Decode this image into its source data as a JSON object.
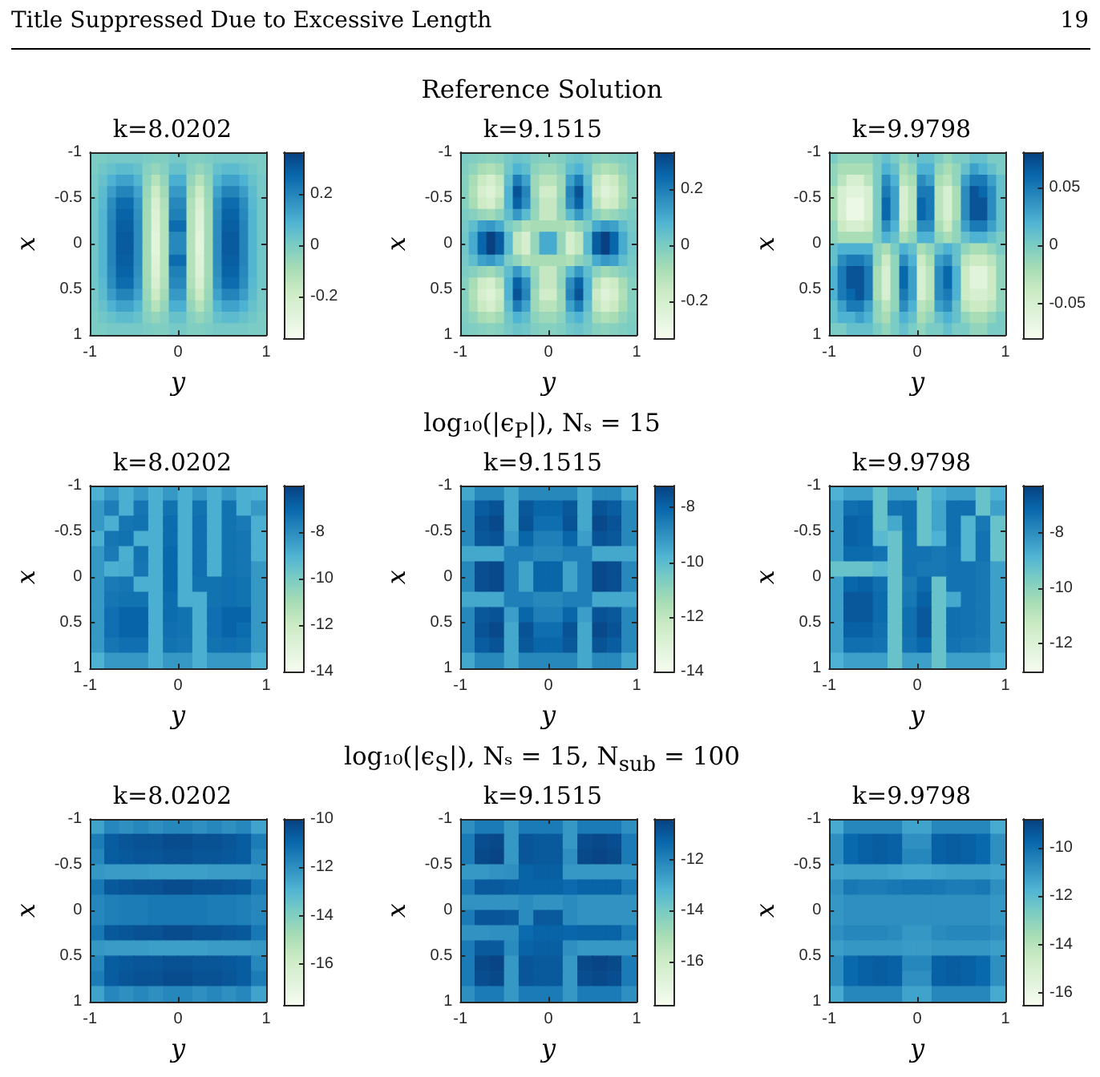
{
  "chart_data": [
    {
      "type": "heatmap",
      "title": "k=8.0202",
      "annotations": [
        "Title Suppressed Due to Excessive Length",
        "19"
      ],
      "xlabel": "y",
      "ylabel": "x",
      "xlim": [
        -1,
        1
      ],
      "ylim": [
        1,
        -1
      ],
      "xticks": [
        -1,
        0,
        1
      ],
      "yticks": [
        -1,
        -0.5,
        0,
        0.5,
        1
      ],
      "clim": [
        -0.36,
        0.36
      ],
      "cticks": [
        -0.2,
        0,
        0.2
      ],
      "cells": [
        [
          0,
          0,
          0.01,
          0.01,
          0.01,
          0.01,
          0,
          -0.01,
          -0.01,
          0.01,
          0.01,
          -0.01,
          -0.01,
          0,
          0.01,
          0.01,
          0.01,
          0.01,
          0,
          0
        ],
        [
          0,
          0.02,
          0.04,
          0.06,
          0.06,
          0.04,
          -0.02,
          -0.05,
          -0.02,
          0.04,
          0.04,
          -0.02,
          -0.05,
          -0.02,
          0.04,
          0.06,
          0.06,
          0.04,
          0.02,
          0
        ],
        [
          0.01,
          0.04,
          0.09,
          0.13,
          0.13,
          0.08,
          -0.04,
          -0.12,
          -0.05,
          0.1,
          0.1,
          -0.05,
          -0.12,
          -0.04,
          0.08,
          0.13,
          0.13,
          0.09,
          0.04,
          0.01
        ],
        [
          0.01,
          0.06,
          0.14,
          0.2,
          0.2,
          0.13,
          -0.06,
          -0.18,
          -0.08,
          0.15,
          0.15,
          -0.08,
          -0.18,
          -0.06,
          0.13,
          0.2,
          0.2,
          0.14,
          0.06,
          0.01
        ],
        [
          0.02,
          0.07,
          0.18,
          0.26,
          0.26,
          0.16,
          -0.07,
          -0.23,
          -0.11,
          0.19,
          0.19,
          -0.11,
          -0.23,
          -0.07,
          0.16,
          0.26,
          0.26,
          0.18,
          0.07,
          0.02
        ],
        [
          0.02,
          0.08,
          0.19,
          0.28,
          0.28,
          0.17,
          -0.08,
          -0.25,
          -0.12,
          0.21,
          0.21,
          -0.12,
          -0.25,
          -0.08,
          0.17,
          0.28,
          0.28,
          0.19,
          0.08,
          0.02
        ],
        [
          0.02,
          0.08,
          0.2,
          0.29,
          0.29,
          0.18,
          -0.08,
          -0.26,
          -0.12,
          0.26,
          0.26,
          -0.12,
          -0.26,
          -0.08,
          0.18,
          0.29,
          0.29,
          0.2,
          0.08,
          0.02
        ],
        [
          0.02,
          0.08,
          0.2,
          0.3,
          0.3,
          0.18,
          -0.08,
          -0.28,
          -0.12,
          0.19,
          0.19,
          -0.12,
          -0.28,
          -0.08,
          0.18,
          0.3,
          0.3,
          0.2,
          0.08,
          0.02
        ],
        [
          0.02,
          0.08,
          0.2,
          0.3,
          0.3,
          0.18,
          -0.08,
          -0.28,
          -0.12,
          0.19,
          0.19,
          -0.12,
          -0.28,
          -0.08,
          0.18,
          0.3,
          0.3,
          0.2,
          0.08,
          0.02
        ],
        [
          0.02,
          0.08,
          0.2,
          0.29,
          0.29,
          0.18,
          -0.08,
          -0.26,
          -0.12,
          0.26,
          0.26,
          -0.12,
          -0.26,
          -0.08,
          0.18,
          0.29,
          0.29,
          0.2,
          0.08,
          0.02
        ],
        [
          0.02,
          0.08,
          0.19,
          0.28,
          0.28,
          0.17,
          -0.08,
          -0.25,
          -0.12,
          0.21,
          0.21,
          -0.12,
          -0.25,
          -0.08,
          0.17,
          0.28,
          0.28,
          0.19,
          0.08,
          0.02
        ],
        [
          0.02,
          0.07,
          0.18,
          0.26,
          0.26,
          0.16,
          -0.07,
          -0.23,
          -0.11,
          0.19,
          0.19,
          -0.11,
          -0.23,
          -0.07,
          0.16,
          0.26,
          0.26,
          0.18,
          0.07,
          0.02
        ],
        [
          0.01,
          0.06,
          0.14,
          0.2,
          0.2,
          0.13,
          -0.06,
          -0.18,
          -0.08,
          0.15,
          0.15,
          -0.08,
          -0.18,
          -0.06,
          0.13,
          0.2,
          0.2,
          0.14,
          0.06,
          0.01
        ],
        [
          0.01,
          0.04,
          0.09,
          0.13,
          0.13,
          0.08,
          -0.04,
          -0.12,
          -0.05,
          0.1,
          0.1,
          -0.05,
          -0.12,
          -0.04,
          0.08,
          0.13,
          0.13,
          0.09,
          0.04,
          0.01
        ],
        [
          0,
          0.02,
          0.04,
          0.06,
          0.06,
          0.04,
          -0.02,
          -0.05,
          -0.02,
          0.04,
          0.04,
          -0.02,
          -0.05,
          -0.02,
          0.04,
          0.06,
          0.06,
          0.04,
          0.02,
          0
        ],
        [
          0,
          0,
          0.01,
          0.01,
          0.01,
          0.01,
          0,
          -0.01,
          -0.01,
          0.01,
          0.01,
          -0.01,
          -0.01,
          0,
          0.01,
          0.01,
          0.01,
          0.01,
          0,
          0
        ]
      ]
    },
    {
      "type": "heatmap",
      "title": "k=9.1515",
      "subtitle": "Reference Solution",
      "xlabel": "y",
      "ylabel": "x",
      "xlim": [
        -1,
        1
      ],
      "ylim": [
        1,
        -1
      ],
      "xticks": [
        -1,
        0,
        1
      ],
      "yticks": [
        -1,
        -0.5,
        0,
        0.5,
        1
      ],
      "clim": [
        -0.33,
        0.33
      ],
      "cticks": [
        -0.2,
        0,
        0.2
      ],
      "cells": [
        [
          0,
          -0.01,
          -0.02,
          -0.03,
          -0.02,
          0.01,
          0.03,
          0.02,
          -0.01,
          -0.02,
          -0.02,
          -0.01,
          0.02,
          0.03,
          0.01,
          -0.02,
          -0.03,
          -0.02,
          -0.01,
          0
        ],
        [
          -0.01,
          -0.04,
          -0.08,
          -0.1,
          -0.07,
          0.02,
          0.08,
          0.05,
          -0.03,
          -0.06,
          -0.06,
          -0.03,
          0.05,
          0.08,
          0.02,
          -0.07,
          -0.1,
          -0.08,
          -0.04,
          -0.01
        ],
        [
          -0.02,
          -0.08,
          -0.16,
          -0.2,
          -0.14,
          0.05,
          0.2,
          0.12,
          -0.06,
          -0.12,
          -0.12,
          -0.06,
          0.12,
          0.2,
          0.05,
          -0.14,
          -0.2,
          -0.16,
          -0.08,
          -0.02
        ],
        [
          -0.02,
          -0.1,
          -0.2,
          -0.24,
          -0.17,
          0.08,
          0.29,
          0.18,
          -0.06,
          -0.18,
          -0.18,
          -0.06,
          0.18,
          0.29,
          0.08,
          -0.17,
          -0.24,
          -0.2,
          -0.1,
          -0.02
        ],
        [
          -0.02,
          -0.08,
          -0.17,
          -0.2,
          -0.12,
          0.08,
          0.26,
          0.16,
          -0.04,
          -0.15,
          -0.15,
          -0.04,
          0.16,
          0.26,
          0.08,
          -0.12,
          -0.2,
          -0.17,
          -0.08,
          -0.02
        ],
        [
          0,
          -0.02,
          -0.05,
          -0.07,
          -0.03,
          0.05,
          0.14,
          0.06,
          -0.05,
          -0.15,
          -0.15,
          -0.05,
          0.06,
          0.14,
          0.05,
          -0.03,
          -0.07,
          -0.05,
          -0.02,
          0
        ],
        [
          0.01,
          0.05,
          0.12,
          0.14,
          0.1,
          0,
          -0.04,
          -0.1,
          -0.08,
          -0.08,
          -0.08,
          -0.08,
          -0.1,
          -0.04,
          0,
          0.1,
          0.14,
          0.12,
          0.05,
          0.01
        ],
        [
          0.02,
          0.1,
          0.25,
          0.33,
          0.27,
          0.06,
          -0.14,
          -0.2,
          -0.05,
          0.1,
          0.1,
          -0.05,
          -0.2,
          -0.14,
          0.06,
          0.27,
          0.33,
          0.25,
          0.1,
          0.02
        ],
        [
          0.02,
          0.1,
          0.25,
          0.33,
          0.27,
          0.06,
          -0.14,
          -0.2,
          -0.05,
          0.1,
          0.1,
          -0.05,
          -0.2,
          -0.14,
          0.06,
          0.27,
          0.33,
          0.25,
          0.1,
          0.02
        ],
        [
          0.01,
          0.05,
          0.12,
          0.14,
          0.1,
          0,
          -0.04,
          -0.1,
          -0.08,
          -0.08,
          -0.08,
          -0.08,
          -0.1,
          -0.04,
          0,
          0.1,
          0.14,
          0.12,
          0.05,
          0.01
        ],
        [
          0,
          -0.02,
          -0.05,
          -0.07,
          -0.03,
          0.05,
          0.14,
          0.06,
          -0.05,
          -0.15,
          -0.15,
          -0.05,
          0.06,
          0.14,
          0.05,
          -0.03,
          -0.07,
          -0.05,
          -0.02,
          0
        ],
        [
          -0.02,
          -0.08,
          -0.17,
          -0.2,
          -0.12,
          0.08,
          0.26,
          0.16,
          -0.04,
          -0.15,
          -0.15,
          -0.04,
          0.16,
          0.26,
          0.08,
          -0.12,
          -0.2,
          -0.17,
          -0.08,
          -0.02
        ],
        [
          -0.02,
          -0.1,
          -0.2,
          -0.24,
          -0.17,
          0.08,
          0.29,
          0.18,
          -0.06,
          -0.18,
          -0.18,
          -0.06,
          0.18,
          0.29,
          0.08,
          -0.17,
          -0.24,
          -0.2,
          -0.1,
          -0.02
        ],
        [
          -0.02,
          -0.08,
          -0.16,
          -0.2,
          -0.14,
          0.05,
          0.2,
          0.12,
          -0.06,
          -0.12,
          -0.12,
          -0.06,
          0.12,
          0.2,
          0.05,
          -0.14,
          -0.2,
          -0.16,
          -0.08,
          -0.02
        ],
        [
          -0.01,
          -0.04,
          -0.08,
          -0.1,
          -0.07,
          0.02,
          0.08,
          0.05,
          -0.03,
          -0.06,
          -0.06,
          -0.03,
          0.05,
          0.08,
          0.02,
          -0.07,
          -0.1,
          -0.08,
          -0.04,
          -0.01
        ],
        [
          0,
          -0.01,
          -0.02,
          -0.03,
          -0.02,
          0.01,
          0.03,
          0.02,
          -0.01,
          -0.02,
          -0.02,
          -0.01,
          0.02,
          0.03,
          0.01,
          -0.02,
          -0.03,
          -0.02,
          -0.01,
          0
        ]
      ]
    },
    {
      "type": "heatmap",
      "title": "k=9.9798",
      "xlabel": "y",
      "ylabel": "x",
      "xlim": [
        -1,
        1
      ],
      "ylim": [
        1,
        -1
      ],
      "xticks": [
        -1,
        0,
        1
      ],
      "yticks": [
        -1,
        -0.5,
        0,
        0.5,
        1
      ],
      "clim": [
        -0.08,
        0.08
      ],
      "cticks": [
        -0.05,
        0,
        0.05
      ],
      "cells": [
        [
          0,
          -0.01,
          -0.01,
          -0.01,
          -0.01,
          0,
          0.01,
          0,
          -0.01,
          0,
          0.01,
          0.01,
          0,
          -0.01,
          0,
          0,
          0.01,
          0.01,
          0,
          0
        ],
        [
          -0.01,
          -0.02,
          -0.02,
          -0.02,
          -0.02,
          0,
          0.02,
          0.01,
          -0.02,
          -0.01,
          0.02,
          0.02,
          -0.01,
          -0.02,
          -0.01,
          0.01,
          0.03,
          0.02,
          0.01,
          0
        ],
        [
          -0.01,
          -0.03,
          -0.05,
          -0.05,
          -0.03,
          0,
          0.04,
          0.02,
          -0.03,
          -0.02,
          0.04,
          0.03,
          -0.02,
          -0.03,
          -0.01,
          0.03,
          0.05,
          0.05,
          0.03,
          0.01
        ],
        [
          -0.02,
          -0.05,
          -0.06,
          -0.06,
          -0.05,
          0,
          0.05,
          0.03,
          -0.05,
          -0.03,
          0.05,
          0.05,
          -0.03,
          -0.05,
          -0.02,
          0.04,
          0.07,
          0.06,
          0.04,
          0.01
        ],
        [
          -0.02,
          -0.05,
          -0.07,
          -0.07,
          -0.05,
          0,
          0.06,
          0.03,
          -0.05,
          -0.03,
          0.06,
          0.05,
          -0.03,
          -0.05,
          -0.02,
          0.04,
          0.07,
          0.07,
          0.04,
          0.01
        ],
        [
          -0.02,
          -0.05,
          -0.07,
          -0.07,
          -0.05,
          0,
          0.06,
          0.03,
          -0.05,
          -0.03,
          0.06,
          0.05,
          -0.03,
          -0.05,
          -0.02,
          0.04,
          0.07,
          0.07,
          0.04,
          0.01
        ],
        [
          -0.01,
          -0.04,
          -0.05,
          -0.05,
          -0.04,
          0,
          0.04,
          0.02,
          -0.04,
          -0.02,
          0.04,
          0.04,
          -0.02,
          -0.04,
          -0.01,
          0.03,
          0.05,
          0.05,
          0.03,
          0.01
        ],
        [
          -0.01,
          -0.02,
          -0.02,
          -0.02,
          -0.02,
          0,
          0.02,
          0.01,
          -0.02,
          -0.01,
          0.02,
          0.02,
          -0.01,
          -0.02,
          -0.01,
          0.01,
          0.02,
          0.02,
          0.01,
          0
        ],
        [
          0.01,
          0.02,
          0.02,
          0.02,
          0.02,
          -0.01,
          -0.02,
          0,
          0.02,
          0.01,
          -0.02,
          -0.01,
          0.01,
          0.02,
          0.01,
          -0.01,
          -0.02,
          -0.02,
          -0.01,
          0
        ],
        [
          0.01,
          0.04,
          0.05,
          0.05,
          0.04,
          -0.01,
          -0.04,
          -0.01,
          0.04,
          0.02,
          -0.04,
          -0.02,
          0.03,
          0.04,
          0.01,
          -0.03,
          -0.04,
          -0.04,
          -0.03,
          -0.01
        ],
        [
          0.02,
          0.05,
          0.07,
          0.07,
          0.05,
          -0.02,
          -0.05,
          -0.01,
          0.06,
          0.03,
          -0.05,
          -0.03,
          0.04,
          0.06,
          0.02,
          -0.04,
          -0.06,
          -0.06,
          -0.04,
          -0.01
        ],
        [
          0.02,
          0.05,
          0.07,
          0.07,
          0.05,
          -0.02,
          -0.05,
          -0.01,
          0.06,
          0.03,
          -0.05,
          -0.03,
          0.04,
          0.06,
          0.02,
          -0.04,
          -0.06,
          -0.06,
          -0.04,
          -0.01
        ],
        [
          0.02,
          0.05,
          0.06,
          0.07,
          0.05,
          -0.02,
          -0.05,
          -0.01,
          0.05,
          0.03,
          -0.05,
          -0.03,
          0.04,
          0.05,
          0.02,
          -0.04,
          -0.05,
          -0.05,
          -0.04,
          -0.01
        ],
        [
          0.01,
          0.03,
          0.05,
          0.05,
          0.03,
          -0.01,
          -0.03,
          -0.01,
          0.04,
          0.02,
          -0.03,
          -0.02,
          0.03,
          0.04,
          0.01,
          -0.03,
          -0.04,
          -0.04,
          -0.03,
          -0.01
        ],
        [
          0.01,
          0.02,
          0.02,
          0.03,
          0.02,
          -0.01,
          -0.02,
          0,
          0.02,
          0.01,
          -0.02,
          -0.01,
          0.01,
          0.02,
          0.01,
          -0.01,
          -0.02,
          -0.02,
          -0.01,
          0
        ],
        [
          0,
          0,
          0.01,
          0.01,
          0.01,
          0,
          -0.01,
          0,
          0.01,
          0,
          -0.01,
          0,
          0,
          0.01,
          0,
          0,
          -0.01,
          -0.01,
          0,
          0
        ]
      ]
    },
    {
      "type": "heatmap",
      "title": "k=8.0202",
      "xlabel": "y",
      "ylabel": "x",
      "xlim": [
        -1,
        1
      ],
      "ylim": [
        1,
        -1
      ],
      "xticks": [
        -1,
        0,
        1
      ],
      "yticks": [
        -1,
        -0.5,
        0,
        0.5,
        1
      ],
      "clim": [
        -14,
        -6
      ],
      "cticks": [
        -14,
        -12,
        -10,
        -8
      ],
      "cells": [
        [
          -9,
          -8.3,
          -8.9,
          -8.3,
          -8.9,
          -8.3,
          -8.9,
          -8.3,
          -8.9,
          -8.3,
          -8.9,
          -9
        ],
        [
          -8.3,
          -7.6,
          -8.9,
          -7.4,
          -8.9,
          -7.3,
          -8.9,
          -7.3,
          -8.9,
          -7.3,
          -8.9,
          -8.3
        ],
        [
          -8.3,
          -8.9,
          -7.4,
          -7.3,
          -8.9,
          -7.1,
          -8.9,
          -7.2,
          -8.9,
          -7.3,
          -7.5,
          -8.9
        ],
        [
          -8.9,
          -7.4,
          -7.3,
          -8.9,
          -8.9,
          -7.1,
          -8.9,
          -7.2,
          -8.9,
          -7.3,
          -7.4,
          -8.9
        ],
        [
          -8.3,
          -7.5,
          -8.9,
          -7.3,
          -8.9,
          -7,
          -8.9,
          -7.2,
          -8.9,
          -7.3,
          -7.4,
          -8.9
        ],
        [
          -8.3,
          -8.9,
          -8.8,
          -7.4,
          -8.9,
          -7,
          -8.9,
          -7.2,
          -8.9,
          -7.3,
          -7.4,
          -8.3
        ],
        [
          -8.3,
          -7.5,
          -7.4,
          -8.9,
          -8.9,
          -7,
          -8.9,
          -7.3,
          -7.3,
          -7.2,
          -7.3,
          -8.3
        ],
        [
          -8.3,
          -7.4,
          -7.3,
          -7.3,
          -8.9,
          -7.1,
          -8.9,
          -8.9,
          -7.3,
          -7.2,
          -7.3,
          -8.3
        ],
        [
          -8.3,
          -7.2,
          -6.9,
          -6.9,
          -8.9,
          -7.1,
          -7.3,
          -8.9,
          -7.2,
          -6.9,
          -6.9,
          -8.3
        ],
        [
          -8.3,
          -7.2,
          -6.9,
          -6.9,
          -8.9,
          -7.2,
          -7.3,
          -8.9,
          -7.2,
          -6.9,
          -7.1,
          -8.3
        ],
        [
          -8.3,
          -7.4,
          -7.2,
          -7.2,
          -8.9,
          -7.3,
          -7.4,
          -8.9,
          -7.3,
          -7.2,
          -7.3,
          -8.3
        ],
        [
          -9,
          -8.3,
          -8.3,
          -8.3,
          -8.9,
          -8.3,
          -8.3,
          -8.9,
          -8.3,
          -8.3,
          -8.3,
          -9
        ]
      ]
    },
    {
      "type": "heatmap",
      "title": "k=9.1515",
      "subtitle": "log₁₀(|ϵ$_{P}$|), Nₛ = 15",
      "xlabel": "y",
      "ylabel": "x",
      "xlim": [
        -1,
        1
      ],
      "ylim": [
        1,
        -1
      ],
      "xticks": [
        -1,
        0,
        1
      ],
      "yticks": [
        -1,
        -0.5,
        0,
        0.5,
        1
      ],
      "clim": [
        -14,
        -7.2
      ],
      "cticks": [
        -14,
        -12,
        -10,
        -8
      ],
      "cells": [
        [
          -9.5,
          -8.8,
          -8.8,
          -9.5,
          -8.8,
          -8.8,
          -8.8,
          -8.8,
          -9.5,
          -8.8,
          -8.8,
          -9.5
        ],
        [
          -8.8,
          -7.8,
          -7.6,
          -9.5,
          -7.7,
          -8,
          -8,
          -7.7,
          -9.5,
          -7.6,
          -7.8,
          -8.8
        ],
        [
          -8.8,
          -7.6,
          -7.4,
          -9.5,
          -7.6,
          -8.2,
          -8.2,
          -7.6,
          -9.5,
          -7.4,
          -7.6,
          -8.8
        ],
        [
          -8.8,
          -7.7,
          -7.6,
          -9.3,
          -8,
          -8.6,
          -8.6,
          -8,
          -9.3,
          -7.6,
          -7.7,
          -8.8
        ],
        [
          -9.5,
          -9.5,
          -9.5,
          -8.6,
          -8.6,
          -8.8,
          -8.8,
          -8.6,
          -8.6,
          -9.5,
          -9.5,
          -9.5
        ],
        [
          -8.8,
          -7.5,
          -7.4,
          -8.6,
          -9.4,
          -8,
          -8,
          -9.4,
          -8.6,
          -7.4,
          -7.5,
          -8.8
        ],
        [
          -8.8,
          -7.5,
          -7.4,
          -8.6,
          -9.4,
          -8,
          -8,
          -9.4,
          -8.6,
          -7.4,
          -7.5,
          -8.8
        ],
        [
          -9.5,
          -9.5,
          -9.5,
          -8.6,
          -8.6,
          -8.8,
          -8.8,
          -8.6,
          -8.6,
          -9.5,
          -9.5,
          -9.5
        ],
        [
          -8.8,
          -7.7,
          -7.6,
          -9.3,
          -8,
          -8.6,
          -8.6,
          -8,
          -9.3,
          -7.6,
          -7.7,
          -8.8
        ],
        [
          -8.8,
          -7.6,
          -7.4,
          -9.5,
          -7.6,
          -8.2,
          -8.2,
          -7.6,
          -9.5,
          -7.4,
          -7.6,
          -8.8
        ],
        [
          -8.8,
          -7.8,
          -7.6,
          -9.5,
          -7.7,
          -8,
          -8,
          -7.7,
          -9.5,
          -7.6,
          -7.8,
          -8.8
        ],
        [
          -9.5,
          -8.8,
          -8.8,
          -9.5,
          -8.8,
          -8.8,
          -8.8,
          -8.8,
          -9.5,
          -8.8,
          -8.8,
          -9.5
        ]
      ]
    },
    {
      "type": "heatmap",
      "title": "k=9.9798",
      "xlabel": "y",
      "ylabel": "x",
      "xlim": [
        -1,
        1
      ],
      "ylim": [
        1,
        -1
      ],
      "xticks": [
        -1,
        0,
        1
      ],
      "yticks": [
        -1,
        -0.5,
        0,
        0.5,
        1
      ],
      "clim": [
        -13,
        -6.3
      ],
      "cticks": [
        -12,
        -10,
        -8
      ],
      "cells": [
        [
          -8.8,
          -8.4,
          -8.4,
          -9.3,
          -8.4,
          -8.4,
          -9.3,
          -8.7,
          -8.4,
          -8.4,
          -9.3,
          -8.8
        ],
        [
          -8.4,
          -7.3,
          -7.2,
          -9.3,
          -7.4,
          -7.3,
          -9.3,
          -8.5,
          -7.3,
          -7.3,
          -9.3,
          -8.4
        ],
        [
          -8.4,
          -7,
          -7.1,
          -9.3,
          -8.6,
          -7.3,
          -9.3,
          -8.5,
          -7.3,
          -8.9,
          -7.5,
          -9.3
        ],
        [
          -8.4,
          -7,
          -7.1,
          -9,
          -9.3,
          -7.4,
          -9.3,
          -8.8,
          -7.3,
          -8.9,
          -7.4,
          -9.3
        ],
        [
          -8.4,
          -7.2,
          -7.2,
          -7.4,
          -9.3,
          -7.4,
          -7.4,
          -7.5,
          -7.4,
          -8.9,
          -7.4,
          -9.3
        ],
        [
          -9.3,
          -9.3,
          -9.3,
          -9,
          -9.3,
          -7.4,
          -7.5,
          -7.5,
          -7.4,
          -7.4,
          -7.5,
          -8.4
        ],
        [
          -8.4,
          -7.1,
          -7,
          -7.3,
          -9.3,
          -7.6,
          -7.2,
          -9.3,
          -7.4,
          -7.4,
          -7.5,
          -8.4
        ],
        [
          -8.4,
          -6.8,
          -6.8,
          -7.2,
          -9.3,
          -7.5,
          -7,
          -9.3,
          -8.6,
          -7.4,
          -7.5,
          -8.4
        ],
        [
          -8.4,
          -6.8,
          -6.8,
          -7.2,
          -9.3,
          -7.3,
          -6.8,
          -9.3,
          -7.3,
          -7.4,
          -7.5,
          -8.4
        ],
        [
          -8.4,
          -7,
          -7,
          -7.3,
          -9.3,
          -7.3,
          -6.8,
          -9.3,
          -7.3,
          -7.4,
          -7.5,
          -8.4
        ],
        [
          -8.4,
          -7.3,
          -7.3,
          -7.4,
          -9.3,
          -7.4,
          -7.1,
          -9.3,
          -7.4,
          -7.5,
          -7.6,
          -8.4
        ],
        [
          -8.8,
          -8.4,
          -8.4,
          -8.4,
          -9.3,
          -8.4,
          -8.4,
          -9.3,
          -8.4,
          -8.4,
          -8.4,
          -8.8
        ]
      ]
    },
    {
      "type": "heatmap",
      "title": "k=8.0202",
      "xlabel": "y",
      "ylabel": "x",
      "xlim": [
        -1,
        1
      ],
      "ylim": [
        1,
        -1
      ],
      "xticks": [
        -1,
        0,
        1
      ],
      "yticks": [
        -1,
        -0.5,
        0,
        0.5,
        1
      ],
      "clim": [
        -17.7,
        -10
      ],
      "cticks": [
        -16,
        -14,
        -12,
        -10
      ],
      "cells": [
        [
          -12.5,
          -11.8,
          -12,
          -11.8,
          -12,
          -11.8,
          -11.8,
          -12,
          -11.8,
          -12,
          -11.8,
          -12.5
        ],
        [
          -11.5,
          -10.7,
          -10.5,
          -10.4,
          -10.4,
          -10.3,
          -10.3,
          -10.4,
          -10.4,
          -10.5,
          -10.7,
          -11.5
        ],
        [
          -11.8,
          -10.7,
          -10.6,
          -10.5,
          -10.5,
          -10.4,
          -10.4,
          -10.5,
          -10.5,
          -10.6,
          -10.7,
          -11.8
        ],
        [
          -12.2,
          -12.3,
          -12.3,
          -12.3,
          -12.4,
          -12.4,
          -12.4,
          -12.4,
          -12.3,
          -12.3,
          -12.3,
          -12.2
        ],
        [
          -11.4,
          -10.6,
          -10.5,
          -10.4,
          -10.4,
          -10.3,
          -10.3,
          -10.4,
          -10.4,
          -10.5,
          -10.6,
          -11.4
        ],
        [
          -11.8,
          -11.6,
          -11.5,
          -11.5,
          -11.4,
          -11.4,
          -11.4,
          -11.4,
          -11.5,
          -11.5,
          -11.6,
          -11.8
        ],
        [
          -11.8,
          -11.6,
          -11.5,
          -11.5,
          -11.4,
          -11.4,
          -11.4,
          -11.4,
          -11.5,
          -11.5,
          -11.6,
          -11.8
        ],
        [
          -11.4,
          -10.6,
          -10.5,
          -10.4,
          -10.4,
          -10.3,
          -10.3,
          -10.4,
          -10.4,
          -10.5,
          -10.6,
          -11.4
        ],
        [
          -12.2,
          -12.3,
          -12.3,
          -12.3,
          -12.4,
          -12.4,
          -12.4,
          -12.4,
          -12.3,
          -12.3,
          -12.3,
          -12.2
        ],
        [
          -11.8,
          -10.7,
          -10.6,
          -10.5,
          -10.5,
          -10.4,
          -10.4,
          -10.5,
          -10.5,
          -10.6,
          -10.7,
          -11.8
        ],
        [
          -11.5,
          -10.7,
          -10.5,
          -10.4,
          -10.4,
          -10.3,
          -10.3,
          -10.4,
          -10.4,
          -10.5,
          -10.7,
          -11.5
        ],
        [
          -12.5,
          -11.8,
          -12,
          -11.8,
          -12,
          -11.8,
          -11.8,
          -12,
          -11.8,
          -12,
          -11.8,
          -12.5
        ]
      ]
    },
    {
      "type": "heatmap",
      "title": "k=9.1515",
      "subtitle": "log₁₀(|ϵ$_{S}$|), Nₛ = 15, N$_{sub}$ = 100",
      "xlabel": "y",
      "ylabel": "x",
      "xlim": [
        -1,
        1
      ],
      "ylim": [
        1,
        -1
      ],
      "xticks": [
        -1,
        0,
        1
      ],
      "yticks": [
        -1,
        -0.5,
        0,
        0.5,
        1
      ],
      "clim": [
        -17.7,
        -10.4
      ],
      "cticks": [
        -16,
        -14,
        -12
      ],
      "cells": [
        [
          -12.3,
          -11.8,
          -11.8,
          -12.5,
          -11.8,
          -11.8,
          -11.8,
          -12.5,
          -11.8,
          -11.8,
          -11.8,
          -12.3
        ],
        [
          -11.8,
          -10.7,
          -10.6,
          -12.5,
          -10.9,
          -11,
          -11,
          -12.5,
          -10.7,
          -10.6,
          -10.7,
          -11.8
        ],
        [
          -11.8,
          -10.6,
          -10.5,
          -12.5,
          -10.9,
          -11,
          -11,
          -12.3,
          -10.6,
          -10.5,
          -10.6,
          -11.8
        ],
        [
          -12.5,
          -12.5,
          -12.4,
          -12.3,
          -11.2,
          -11.1,
          -11.1,
          -12.5,
          -12.5,
          -12.5,
          -12.5,
          -12.5
        ],
        [
          -11.8,
          -11,
          -11,
          -11.1,
          -11.2,
          -11.2,
          -11.2,
          -11.4,
          -11.2,
          -11.2,
          -11.2,
          -11.8
        ],
        [
          -12.4,
          -12.4,
          -12.4,
          -12.4,
          -12.2,
          -12.4,
          -12.4,
          -12.2,
          -12.4,
          -12.4,
          -12.4,
          -12.4
        ],
        [
          -11.8,
          -10.9,
          -10.9,
          -11,
          -12.2,
          -11,
          -11,
          -12.2,
          -12.4,
          -12.4,
          -12.4,
          -12.4
        ],
        [
          -12.4,
          -12.4,
          -12.3,
          -12.3,
          -11.4,
          -11.2,
          -11.2,
          -11.3,
          -11.2,
          -11.2,
          -11.2,
          -11.8
        ],
        [
          -11.8,
          -11,
          -11,
          -12.2,
          -11.2,
          -11.1,
          -11.1,
          -12.3,
          -12.5,
          -12.5,
          -12.5,
          -12.5
        ],
        [
          -11.8,
          -10.6,
          -10.5,
          -12.5,
          -10.9,
          -11,
          -11,
          -12.5,
          -10.6,
          -10.5,
          -10.6,
          -11.8
        ],
        [
          -11.8,
          -10.7,
          -10.6,
          -12.5,
          -10.9,
          -11,
          -11,
          -12.5,
          -10.7,
          -10.6,
          -10.7,
          -11.8
        ],
        [
          -12.3,
          -11.8,
          -11.8,
          -12.5,
          -11.8,
          -11.8,
          -11.8,
          -12.5,
          -11.8,
          -11.8,
          -11.8,
          -12.3
        ]
      ]
    },
    {
      "type": "heatmap",
      "title": "k=9.9798",
      "xlabel": "y",
      "ylabel": "x",
      "xlim": [
        -1,
        1
      ],
      "ylim": [
        1,
        -1
      ],
      "xticks": [
        -1,
        0,
        1
      ],
      "yticks": [
        -1,
        -0.5,
        0,
        0.5,
        1
      ],
      "clim": [
        -16.5,
        -8.8
      ],
      "cticks": [
        -16,
        -14,
        -12,
        -10
      ],
      "cells": [
        [
          -11.5,
          -10.6,
          -10.6,
          -10.6,
          -10.6,
          -11.3,
          -11.3,
          -10.6,
          -10.6,
          -10.6,
          -10.6,
          -11.5
        ],
        [
          -10.8,
          -9.8,
          -9.6,
          -9.5,
          -9.6,
          -10.8,
          -10.8,
          -9.6,
          -9.5,
          -9.6,
          -9.8,
          -10.8
        ],
        [
          -10.8,
          -9.8,
          -9.6,
          -9.5,
          -9.6,
          -10.6,
          -10.6,
          -9.6,
          -9.5,
          -9.6,
          -9.8,
          -10.8
        ],
        [
          -11.3,
          -11.2,
          -11.2,
          -11.2,
          -11.3,
          -11.4,
          -11.4,
          -11.3,
          -11.2,
          -11.2,
          -11.2,
          -11.3
        ],
        [
          -10.8,
          -10.2,
          -10.3,
          -10.3,
          -10.2,
          -10.1,
          -10.1,
          -10.2,
          -10.3,
          -10.3,
          -10.2,
          -10.8
        ],
        [
          -11,
          -10.8,
          -10.8,
          -10.8,
          -10.8,
          -10.8,
          -10.8,
          -10.8,
          -10.8,
          -10.8,
          -10.8,
          -11
        ],
        [
          -11,
          -10.8,
          -10.8,
          -10.8,
          -10.8,
          -10.8,
          -10.8,
          -10.8,
          -10.8,
          -10.8,
          -10.8,
          -11
        ],
        [
          -10.8,
          -10.6,
          -10.6,
          -10.6,
          -10.7,
          -11,
          -11,
          -10.7,
          -10.6,
          -10.6,
          -10.6,
          -10.8
        ],
        [
          -11.2,
          -11,
          -11,
          -11,
          -11,
          -11.1,
          -11.1,
          -11,
          -11,
          -11,
          -11,
          -11.2
        ],
        [
          -10.8,
          -9.8,
          -9.6,
          -9.5,
          -9.6,
          -10.6,
          -10.6,
          -9.6,
          -9.5,
          -9.6,
          -9.8,
          -10.8
        ],
        [
          -10.8,
          -9.8,
          -9.6,
          -9.5,
          -9.6,
          -10.8,
          -10.8,
          -9.6,
          -9.5,
          -9.6,
          -9.8,
          -10.8
        ],
        [
          -11.5,
          -10.6,
          -10.6,
          -10.6,
          -10.6,
          -11.3,
          -11.3,
          -10.6,
          -10.6,
          -10.6,
          -10.6,
          -11.5
        ]
      ]
    }
  ]
}
